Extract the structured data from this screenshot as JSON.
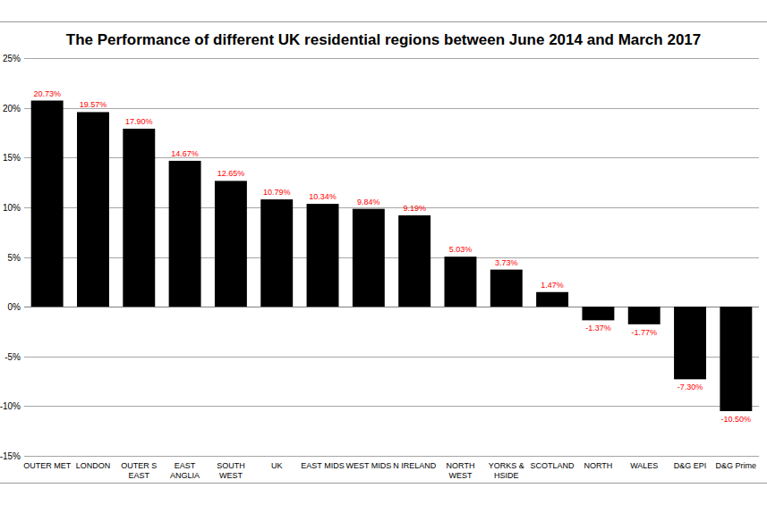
{
  "chart_data": {
    "type": "bar",
    "title": "The Performance of different UK residential regions between June 2014 and March 2017",
    "categories": [
      "OUTER MET",
      "LONDON",
      "OUTER S EAST",
      "EAST ANGLIA",
      "SOUTH WEST",
      "UK",
      "EAST MIDS",
      "WEST MIDS",
      "N IRELAND",
      "NORTH WEST",
      "YORKS & HSIDE",
      "SCOTLAND",
      "NORTH",
      "WALES",
      "D&G EPI",
      "D&G Prime"
    ],
    "values": [
      20.73,
      19.57,
      17.9,
      14.67,
      12.65,
      10.79,
      10.34,
      9.84,
      9.19,
      5.03,
      3.73,
      1.47,
      -1.37,
      -1.77,
      -7.3,
      -10.5
    ],
    "value_labels": [
      "20.73%",
      "19.57%",
      "17.90%",
      "14.67%",
      "12.65%",
      "10.79%",
      "10.34%",
      "9.84%",
      "9.19%",
      "5.03%",
      "3.73%",
      "1.47%",
      "-1.37%",
      "-1.77%",
      "-7.30%",
      "-10.50%"
    ],
    "color": "#000000",
    "data_labels": true,
    "ylim": [
      -15,
      25
    ],
    "yticks": [
      {
        "value": -15,
        "label": "-15%"
      },
      {
        "value": -10,
        "label": "-10%"
      },
      {
        "value": -5,
        "label": "-5%"
      },
      {
        "value": 0,
        "label": "0%"
      },
      {
        "value": 5,
        "label": "5%"
      },
      {
        "value": 10,
        "label": "10%"
      },
      {
        "value": 15,
        "label": "15%"
      },
      {
        "value": 20,
        "label": "20%"
      },
      {
        "value": 25,
        "label": "25%"
      }
    ],
    "grid": true
  }
}
